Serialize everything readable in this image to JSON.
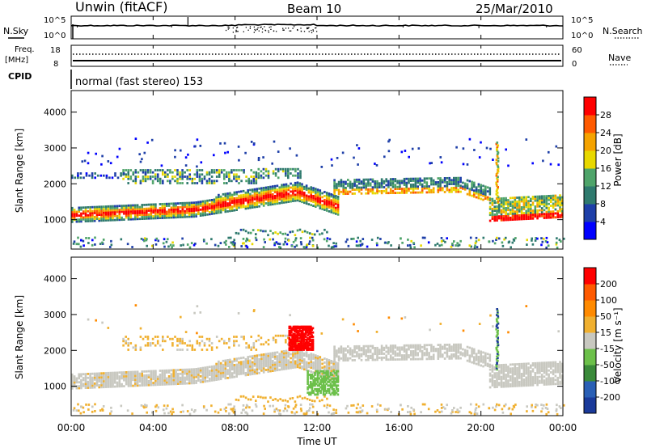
{
  "header": {
    "station": "Unwin (fitACF)",
    "beam": "Beam 10",
    "date": "25/Mar/2010"
  },
  "chart_data": [
    {
      "type": "line",
      "panel": "sky-search-noise",
      "left_label": "N.Sky",
      "right_label": "N.Search",
      "left_ticks": [
        "10^5",
        "10^0"
      ],
      "right_ticks": [
        "10^5",
        "10^0"
      ],
      "xlim": [
        "00:00",
        "24:00"
      ]
    },
    {
      "type": "line",
      "panel": "frequency-nave",
      "left_label_line1": "Freq.",
      "left_label_line2": "[MHz]",
      "right_label": "Nave",
      "left_ticks": [
        "18",
        "8"
      ],
      "right_ticks": [
        "60",
        "0"
      ],
      "xlim": [
        "00:00",
        "24:00"
      ]
    },
    {
      "type": "table",
      "panel": "cpid",
      "label": "CPID",
      "mode_text": "normal (fast stereo) 153"
    },
    {
      "type": "heatmap",
      "panel": "power",
      "ylabel": "Slant Range [km]",
      "yticks": [
        "4000",
        "3000",
        "2000",
        "1000"
      ],
      "ylim": [
        180,
        4600
      ],
      "xlim": [
        "00:00",
        "24:00"
      ],
      "colorbar": {
        "label": "Power [dB]",
        "ticks": [
          "28",
          "24",
          "20",
          "16",
          "12",
          "8",
          "4"
        ],
        "colors": [
          "#0000ff",
          "#1e3fa8",
          "#2f7a6e",
          "#4fa46a",
          "#e8d800",
          "#f5a300",
          "#ff5a00",
          "#ff0000"
        ]
      }
    },
    {
      "type": "heatmap",
      "panel": "velocity",
      "ylabel": "Slant Range [km]",
      "yticks": [
        "4000",
        "3000",
        "2000",
        "1000"
      ],
      "ylim": [
        180,
        4600
      ],
      "xlim": [
        "00:00",
        "24:00"
      ],
      "xlabel": "Time UT",
      "xticks": [
        "00:00",
        "04:00",
        "08:00",
        "12:00",
        "16:00",
        "20:00",
        "00:00"
      ],
      "colorbar": {
        "label": "Velocity [m s⁻¹]",
        "ticks": [
          "200",
          "100",
          "50",
          "15",
          "-15",
          "-50",
          "-100",
          "-200"
        ],
        "colors": [
          "#1a3a9a",
          "#2a5fb5",
          "#3a8a3a",
          "#6cc04a",
          "#c8c8c0",
          "#f0b030",
          "#ff8a00",
          "#ff5a00",
          "#ff0000"
        ]
      }
    }
  ]
}
